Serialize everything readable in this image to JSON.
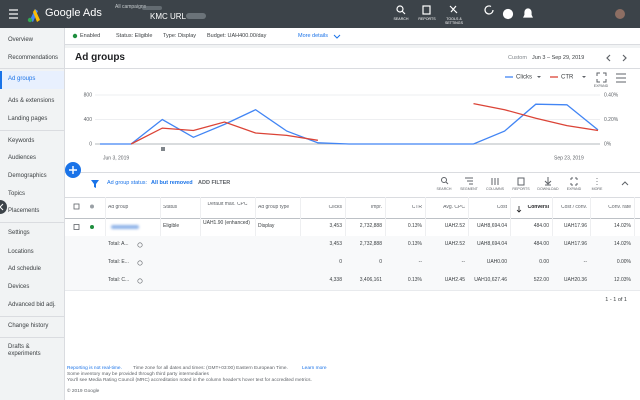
{
  "header": {
    "product": "Google Ads",
    "breadcrumb": "All campaigns",
    "campaign": "KMC URL",
    "tools": [
      "SEARCH",
      "REPORTS",
      "TOOLS & SETTINGS"
    ]
  },
  "sidebar": {
    "items": [
      "Overview",
      "Recommendations",
      "Ad groups",
      "Ads & extensions",
      "Landing pages",
      "Keywords",
      "Audiences",
      "Demographics",
      "Topics",
      "Placements",
      "Settings",
      "Locations",
      "Ad schedule",
      "Devices",
      "Advanced bid adj.",
      "Change history",
      "Drafts & experiments"
    ],
    "selected": 2
  },
  "campaign_bar": {
    "state": "Enabled",
    "status": "Status: Eligible",
    "type": "Type: Display",
    "budget": "Budget: UAH400.00/day",
    "more": "More details"
  },
  "section": {
    "title": "Ad groups",
    "date_preset": "Custom",
    "date_range": "Jun 3 – Sep 29, 2019"
  },
  "chart_data": {
    "type": "line",
    "categories": [
      "Jun 3, 2019",
      null,
      null,
      null,
      null,
      null,
      null,
      null,
      null,
      null,
      null,
      null,
      null,
      null,
      null,
      "Sep 23, 2019",
      null
    ],
    "series": [
      {
        "name": "Clicks",
        "color": "#4285f4",
        "values": [
          0,
          0,
          400,
          110,
          320,
          560,
          210,
          20,
          0,
          0,
          0,
          0,
          0,
          210,
          650,
          640,
          230
        ]
      },
      {
        "name": "CTR",
        "color": "#db4437",
        "axis": "y2",
        "values": [
          null,
          0,
          0.13,
          0.11,
          0.18,
          0.09,
          0.07,
          0.03,
          null,
          null,
          null,
          null,
          0.33,
          0.28,
          0.21,
          0.15,
          0.11
        ]
      }
    ],
    "ylim": [
      0,
      800
    ],
    "yticks": [
      0,
      400,
      800
    ],
    "y2lim": [
      0,
      0.4
    ],
    "y2ticks": [
      {
        "value": 0,
        "label": "0%"
      },
      {
        "value": 0.2,
        "label": "0.20%"
      },
      {
        "value": 0.4,
        "label": "0.40%"
      }
    ],
    "grid": true,
    "legend": "top-right",
    "expand_label": "EXPAND"
  },
  "filter_bar": {
    "filter_label": "Ad group status:",
    "filter_value": "All but removed",
    "add_filter": "ADD FILTER",
    "tools": [
      "SEARCH",
      "SEGMENT",
      "COLUMNS",
      "REPORTS",
      "DOWNLOAD",
      "EXPAND",
      "MORE"
    ]
  },
  "table": {
    "columns": [
      "Ad group",
      "Status",
      "Default max. CPC",
      "Ad group type",
      "Clicks",
      "Impr.",
      "CTR",
      "Avg. CPC",
      "Cost",
      "Conversi",
      "Cost / conv.",
      "Conv. rate"
    ],
    "rows": [
      [
        null,
        "Eligible",
        "UAH1.90 (enhanced)",
        "Display",
        "3,453",
        "2,732,888",
        "0.13%",
        "UAH2.52",
        "UAH8,694.04",
        "484.00",
        "UAH17.96",
        "14.02%"
      ],
      [
        "Total: A...",
        null,
        null,
        null,
        "3,453",
        "2,732,888",
        "0.13%",
        "UAH2.52",
        "UAH8,694.04",
        "484.00",
        "UAH17.96",
        "14.02%"
      ],
      [
        "Total: E...",
        null,
        null,
        null,
        "0",
        "0",
        "--",
        "--",
        "UAH0.00",
        "0.00",
        "--",
        "0.00%"
      ],
      [
        "Total: C...",
        null,
        null,
        null,
        "4,338",
        "3,406,161",
        "0.13%",
        "UAH2.45",
        "UAH10,627.46",
        "522.00",
        "UAH20.36",
        "12.03%"
      ]
    ]
  },
  "pagination": "1 - 1 of 1",
  "footer": {
    "notice": "Reporting is not real-time.",
    "timezone": "Time zone for all dates and times: (GMT+03:00) Eastern European Time.",
    "learn_more": "Learn more",
    "lines": [
      "Some inventory may be provided through third party intermediaries",
      "You'll see Media Rating Council (MRC) accreditation noted in the column header's hover text for accredited metrics."
    ],
    "copyright": "© 2019 Google"
  }
}
